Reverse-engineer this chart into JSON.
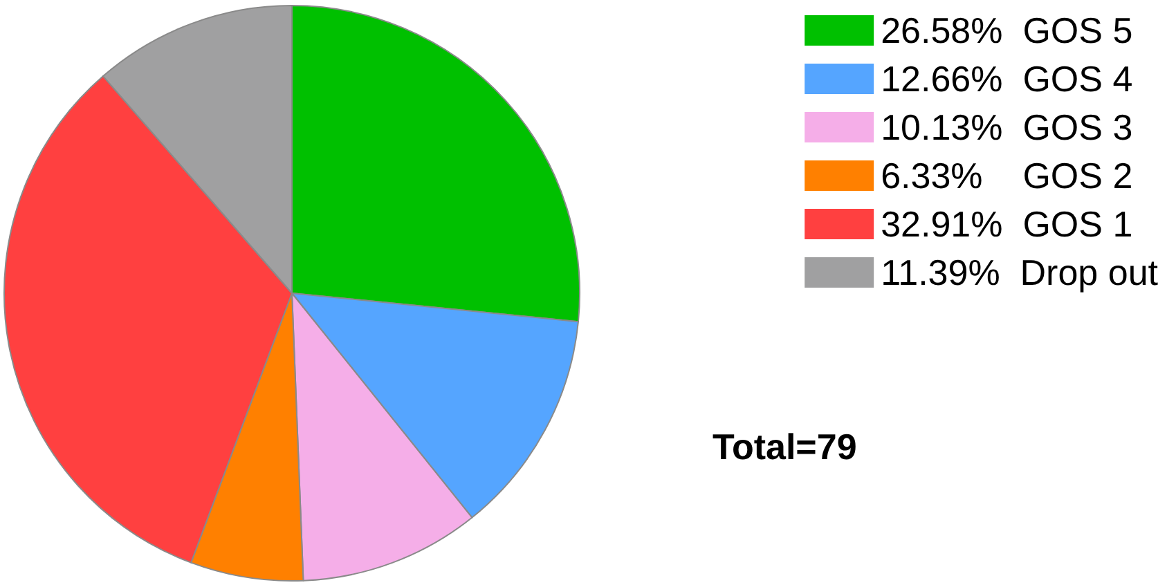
{
  "chart_data": {
    "type": "pie",
    "categories": [
      "26.58%  GOS 5",
      "12.66%  GOS 4",
      "10.13%  GOS 3",
      "6.33%    GOS 2",
      "32.91%  GOS 1",
      "11.39%  Drop out"
    ],
    "values": [
      26.58,
      12.66,
      10.13,
      6.33,
      32.91,
      11.39
    ],
    "colors": [
      "#00c000",
      "#55a5ff",
      "#f5aee8",
      "#ff8000",
      "#ff4040",
      "#a0a0a1"
    ],
    "legend": "top right",
    "annotations": [
      "Total=79"
    ]
  }
}
